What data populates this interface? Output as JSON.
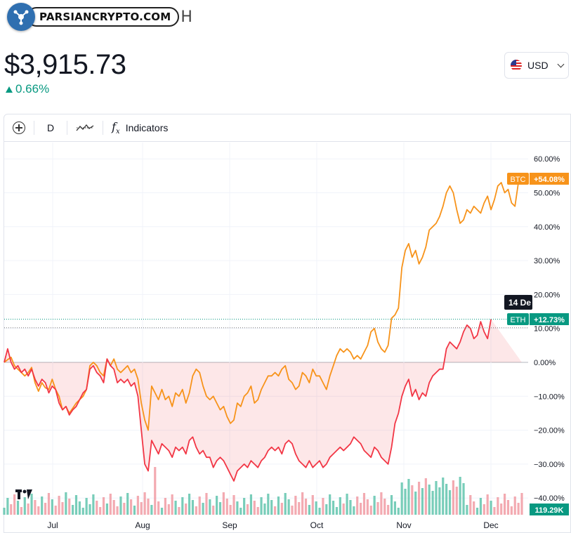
{
  "brand": {
    "name": "PARSIANCRYPTO.COM",
    "tail": "H"
  },
  "quote": {
    "price": "$3,915.73",
    "change": "0.66%",
    "change_color": "#089981"
  },
  "currency": {
    "selected": "USD"
  },
  "toolbar": {
    "interval": "D",
    "indicators_label": "Indicators"
  },
  "colors": {
    "eth": "#f23645",
    "btc": "#f7931a",
    "up": "#089981",
    "vol_up": "#56c1a7",
    "vol_down": "#f0959d"
  },
  "chart_data": {
    "type": "line",
    "ylabel": "",
    "y_unit": "%",
    "ylim": [
      -42,
      64
    ],
    "y_ticks": [
      "60.00%",
      "50.00%",
      "40.00%",
      "30.00%",
      "20.00%",
      "10.00%",
      "0.00%",
      "−10.00%",
      "−20.00%",
      "−30.00%",
      "−40.00%"
    ],
    "x_ticks": [
      "Jul",
      "Aug",
      "Sep",
      "Oct",
      "Nov",
      "Dec"
    ],
    "grid": true,
    "series": [
      {
        "name": "BTC",
        "last_label": "+54.08%",
        "color": "#f7931a",
        "values": [
          0,
          0.8,
          1.5,
          -1,
          -2,
          -3,
          -4,
          -3,
          -1.5,
          -6,
          -8.5,
          -6,
          -7.5,
          -8,
          -5,
          -8,
          -10,
          -14,
          -13,
          -15,
          -13.5,
          -12,
          -11,
          -10,
          -8,
          -1,
          0,
          -1,
          -3,
          -4,
          1,
          -1,
          1,
          -2,
          -3,
          -2,
          -1,
          -3,
          -2,
          -5,
          -12,
          -17,
          -20,
          -7,
          -9,
          -11,
          -8,
          -11,
          -10,
          -13,
          -9,
          -10,
          -8,
          -12,
          -9,
          -4,
          -2,
          -3,
          -7,
          -10,
          -11,
          -10,
          -12,
          -14,
          -13,
          -16,
          -18,
          -17,
          -12,
          -13,
          -10,
          -9,
          -7,
          -12,
          -11,
          -8,
          -6,
          -4,
          -4,
          -3,
          -4,
          -2,
          -1,
          -5,
          -6,
          -8,
          -7,
          -3,
          -4,
          -6,
          -2,
          -4,
          -4,
          -6,
          -8,
          -4,
          -1,
          2,
          4,
          3,
          4,
          3,
          1,
          2,
          1,
          3,
          5,
          9,
          10,
          6,
          4,
          3,
          5,
          13,
          14,
          16,
          28,
          33,
          35,
          31,
          33,
          29,
          31,
          34,
          39,
          40,
          41,
          43,
          46,
          50,
          52,
          50,
          45,
          41,
          42,
          45,
          44,
          46,
          45,
          44,
          47,
          49,
          45,
          48,
          52,
          53,
          50,
          51,
          47,
          46,
          53,
          54.08
        ]
      },
      {
        "name": "ETH",
        "last_label": "+12.73%",
        "color": "#f23645",
        "values": [
          0,
          4,
          0,
          -2,
          -1,
          -3,
          -2,
          -4,
          -2,
          -5,
          -7,
          -5,
          -6,
          -9,
          -7,
          -8,
          -12,
          -14,
          -13,
          -15.5,
          -14,
          -13,
          -11,
          -9,
          -8,
          -2,
          -1,
          -3,
          -4,
          -6,
          1,
          -1,
          -2,
          -6,
          -5,
          -6,
          -5,
          -7,
          -6,
          -10,
          -20,
          -30,
          -32,
          -23,
          -25,
          -27,
          -24,
          -25,
          -26,
          -28,
          -25,
          -26,
          -25,
          -27,
          -23,
          -22,
          -25,
          -27,
          -26,
          -28,
          -28,
          -31,
          -29,
          -28,
          -29,
          -31,
          -33,
          -35,
          -32,
          -31,
          -30,
          -31,
          -29,
          -30,
          -31,
          -29,
          -28,
          -26,
          -25,
          -26,
          -25,
          -27,
          -24,
          -23,
          -24,
          -27,
          -29,
          -30,
          -31,
          -29,
          -31,
          -30,
          -29,
          -31,
          -30,
          -28,
          -27,
          -26,
          -25,
          -26,
          -25,
          -24,
          -22,
          -23,
          -24,
          -26,
          -27,
          -28,
          -25,
          -26,
          -28,
          -29,
          -30,
          -25,
          -18,
          -15,
          -10,
          -7,
          -5,
          -10,
          -8,
          -11,
          -9,
          -10,
          -6,
          -4,
          -3,
          -2,
          -2,
          4,
          6,
          5,
          4,
          6,
          9,
          11,
          10,
          7,
          8,
          12,
          9,
          7,
          12.73
        ]
      }
    ],
    "volume": {
      "last_label": "119.29K"
    },
    "crosshair_label": "14 De"
  }
}
